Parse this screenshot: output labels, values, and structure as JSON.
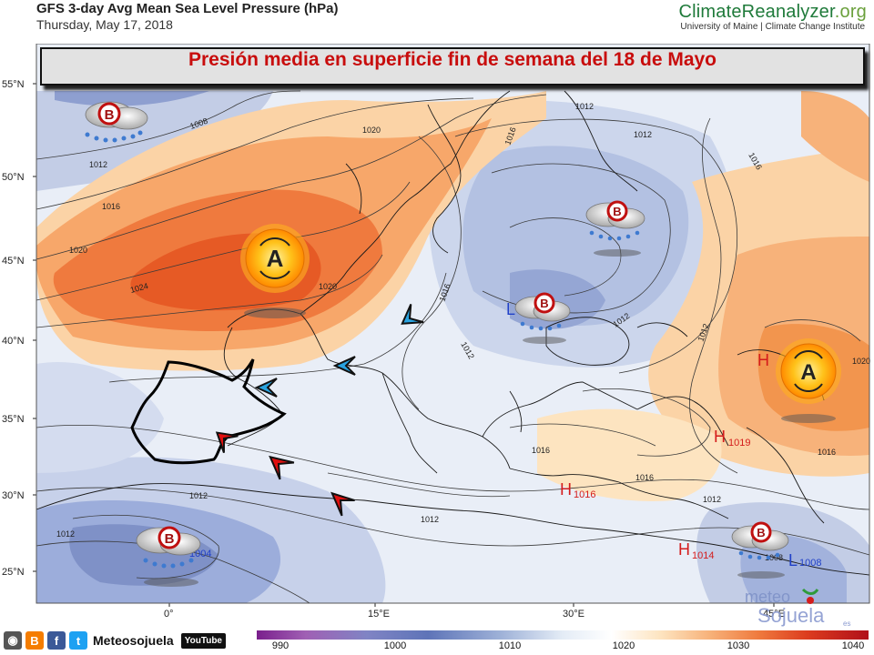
{
  "header": {
    "title": "GFS 3-day Avg Mean Sea Level Pressure (hPa)",
    "date": "Thursday, May 17, 2018",
    "brand_part1": "Climate",
    "brand_part2": "Reanalyzer",
    "brand_part3": ".org",
    "brand_sub": "University of Maine | Climate Change Institute"
  },
  "banner": {
    "text": "Presión media en superficie fin de semana del 18 de Mayo"
  },
  "map": {
    "lat_labels": [
      "55°N",
      "50°N",
      "45°N",
      "40°N",
      "35°N",
      "30°N",
      "25°N"
    ],
    "lon_labels": [
      "0°",
      "15°E",
      "30°E",
      "45°E"
    ],
    "isobar_labels": [
      "1008",
      "1012",
      "1016",
      "1020",
      "1024",
      "1020",
      "1016",
      "1012",
      "1012",
      "1016",
      "1012",
      "1012",
      "1016",
      "1016",
      "1012",
      "1012",
      "1012",
      "1012",
      "1008",
      "1016",
      "1020",
      "1016",
      "1012",
      "1020"
    ],
    "pressure_centers": [
      {
        "type": "H",
        "value": "1016"
      },
      {
        "type": "H",
        "value": "1014"
      },
      {
        "type": "H",
        "value": "1019"
      },
      {
        "type": "H",
        "value": ""
      },
      {
        "type": "L",
        "value": ""
      },
      {
        "type": "L",
        "value": "1008"
      },
      {
        "value": "1004"
      }
    ],
    "symbols": [
      {
        "kind": "high",
        "letter": "A"
      },
      {
        "kind": "high",
        "letter": "A"
      },
      {
        "kind": "low",
        "letter": "B"
      },
      {
        "kind": "low",
        "letter": "B"
      },
      {
        "kind": "low",
        "letter": "B"
      },
      {
        "kind": "low",
        "letter": "B"
      },
      {
        "kind": "low",
        "letter": "B"
      }
    ]
  },
  "watermark": {
    "part1": "meteo",
    "part2": "Sojuela",
    "part3": "es"
  },
  "footer": {
    "social_name": "Meteosojuela",
    "youtube": "YouTube",
    "colorbar_ticks": [
      "990",
      "1000",
      "1010",
      "1020",
      "1030",
      "1040"
    ]
  },
  "colors": {
    "banner_text": "#c80d0d",
    "high_center": "#d41c1c",
    "low_center": "#2040c8",
    "warm": "#ef7a3e",
    "cool": "#8e9fd0"
  }
}
